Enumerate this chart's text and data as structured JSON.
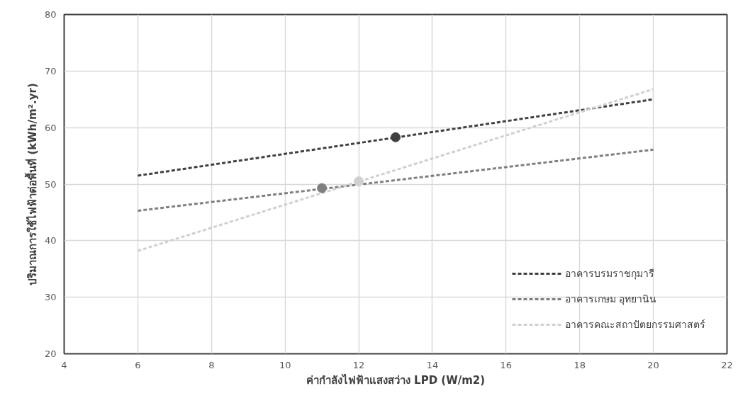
{
  "chart_data": {
    "type": "line",
    "xlabel": "ค่ากำลังไฟฟ้าแสงสว่าง LPD (W/m2)",
    "ylabel": "ปริมาณการใช้ไฟฟ้าต่อพื้นที่ (kWh/m².yr)",
    "xlim": [
      4,
      22
    ],
    "xticks": [
      4,
      6,
      8,
      10,
      12,
      14,
      16,
      18,
      20,
      22
    ],
    "ylim": [
      20,
      80
    ],
    "yticks": [
      20,
      30,
      40,
      50,
      60,
      70,
      80
    ],
    "grid": true,
    "legend": "bottom right",
    "line_style": "dashed",
    "series": [
      {
        "name": "อาคารบรมราชกุมารี",
        "color": "#404040",
        "x": [
          6,
          20
        ],
        "values": [
          51.5,
          65
        ]
      },
      {
        "name": "อาคารเกษม อุทยานิน",
        "color": "#7f7f7f",
        "x": [
          6,
          20
        ],
        "values": [
          45.3,
          56.1
        ]
      },
      {
        "name": "อาคารคณะสถาปัตยกรรมศาสตร์",
        "color": "#d0d0d0",
        "x": [
          6,
          20
        ],
        "values": [
          38.2,
          66.8
        ]
      },
      {
        "type": "scatter",
        "marker": "circle",
        "color": "#404040",
        "x": [
          13
        ],
        "values": [
          58.3
        ]
      },
      {
        "type": "scatter",
        "marker": "circle",
        "color": "#7f7f7f",
        "x": [
          11
        ],
        "values": [
          49.3
        ]
      },
      {
        "type": "scatter",
        "marker": "circle",
        "color": "#d0d0d0",
        "x": [
          12
        ],
        "values": [
          50.5
        ]
      }
    ]
  }
}
